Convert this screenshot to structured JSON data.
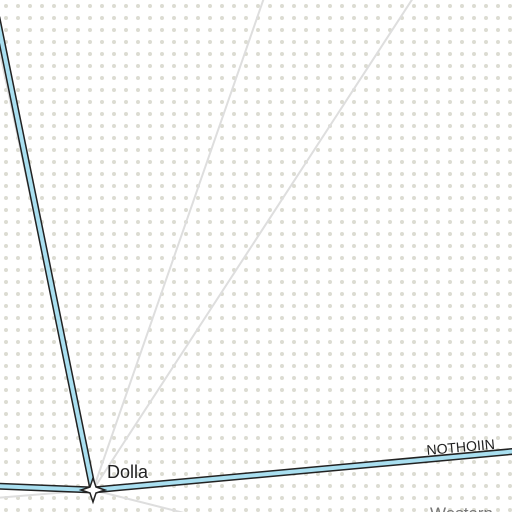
{
  "map": {
    "background_color": "#ffffff",
    "dot_pattern_color": "#dcdcd2",
    "road_color": "#a9dff0",
    "road_casing_color": "#222222",
    "minor_line_color": "#dedede",
    "place_marker_icon": "four-point-star-icon",
    "place_label": "Dolla",
    "road_label": "NOTHOIIN",
    "region_label_partial": "Western"
  }
}
